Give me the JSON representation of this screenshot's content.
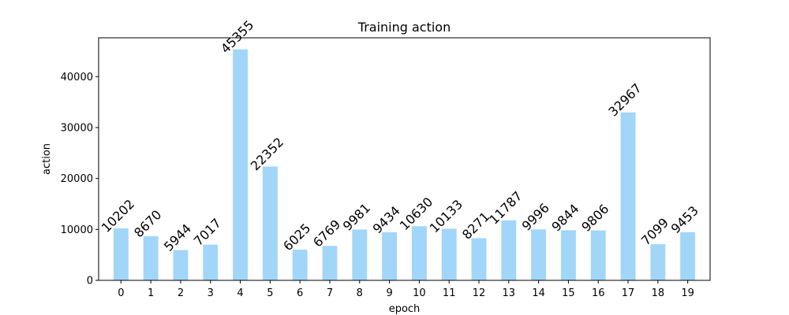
{
  "chart_data": {
    "type": "bar",
    "title": "Training action",
    "xlabel": "epoch",
    "ylabel": "action",
    "categories": [
      "0",
      "1",
      "2",
      "3",
      "4",
      "5",
      "6",
      "7",
      "8",
      "9",
      "10",
      "11",
      "12",
      "13",
      "14",
      "15",
      "16",
      "17",
      "18",
      "19"
    ],
    "values": [
      10202,
      8670,
      5944,
      7017,
      45355,
      22352,
      6025,
      6769,
      9981,
      9434,
      10630,
      10133,
      8271,
      11787,
      9996,
      9844,
      9806,
      32967,
      7099,
      9453
    ],
    "data_labels": [
      "10202",
      "8670",
      "5944",
      "7017",
      "45355",
      "22352",
      "6025",
      "6769",
      "9981",
      "9434",
      "10630",
      "10133",
      "8271",
      "11787",
      "9996",
      "9844",
      "9806",
      "32967",
      "7099",
      "9453"
    ],
    "ylim": [
      0,
      47623
    ],
    "yticks": [
      0,
      10000,
      20000,
      30000,
      40000
    ],
    "ytick_labels": [
      "0",
      "10000",
      "20000",
      "30000",
      "40000"
    ],
    "bar_color": "#a1d6f9",
    "grid": false,
    "legend": "none"
  }
}
